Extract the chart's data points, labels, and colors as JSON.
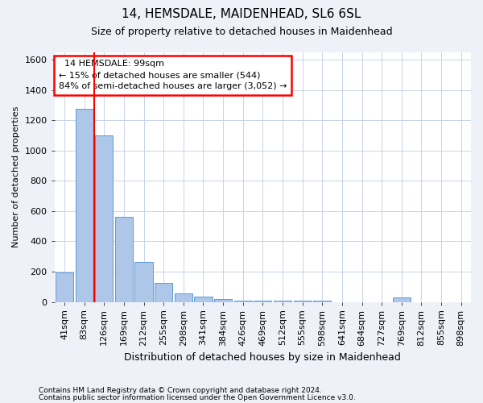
{
  "title1": "14, HEMSDALE, MAIDENHEAD, SL6 6SL",
  "title2": "Size of property relative to detached houses in Maidenhead",
  "xlabel": "Distribution of detached houses by size in Maidenhead",
  "ylabel": "Number of detached properties",
  "bar_labels": [
    "41sqm",
    "83sqm",
    "126sqm",
    "169sqm",
    "212sqm",
    "255sqm",
    "298sqm",
    "341sqm",
    "384sqm",
    "426sqm",
    "469sqm",
    "512sqm",
    "555sqm",
    "598sqm",
    "641sqm",
    "684sqm",
    "727sqm",
    "769sqm",
    "812sqm",
    "855sqm",
    "898sqm"
  ],
  "bar_values": [
    195,
    1275,
    1100,
    560,
    265,
    125,
    55,
    35,
    20,
    10,
    10,
    10,
    10,
    10,
    0,
    0,
    0,
    30,
    0,
    0,
    0
  ],
  "bar_color": "#aec6e8",
  "bar_edge_color": "#5b9bd5",
  "annotation_text_line1": "  14 HEMSDALE: 99sqm",
  "annotation_text_line2": "← 15% of detached houses are smaller (544)",
  "annotation_text_line3": "84% of semi-detached houses are larger (3,052) →",
  "annotation_box_color": "white",
  "annotation_box_edge": "red",
  "red_line_x": 1.5,
  "ylim": [
    0,
    1650
  ],
  "yticks": [
    0,
    200,
    400,
    600,
    800,
    1000,
    1200,
    1400,
    1600
  ],
  "footer1": "Contains HM Land Registry data © Crown copyright and database right 2024.",
  "footer2": "Contains public sector information licensed under the Open Government Licence v3.0.",
  "background_color": "#eef2f8",
  "plot_background": "#ffffff",
  "grid_color": "#c8d4e8",
  "title1_fontsize": 11,
  "title2_fontsize": 9,
  "xlabel_fontsize": 9,
  "ylabel_fontsize": 8,
  "tick_fontsize": 8,
  "footer_fontsize": 6.5
}
